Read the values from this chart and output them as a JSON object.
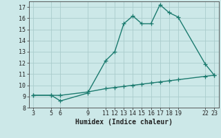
{
  "xlabel": "Humidex (Indice chaleur)",
  "ylabel": "",
  "background_color": "#cce8e8",
  "grid_color": "#aacccc",
  "line_color": "#1a7a6e",
  "ylim": [
    8,
    17.5
  ],
  "xlim": [
    2.5,
    23.5
  ],
  "yticks": [
    8,
    9,
    10,
    11,
    12,
    13,
    14,
    15,
    16,
    17
  ],
  "xticks": [
    3,
    5,
    6,
    9,
    11,
    12,
    13,
    14,
    15,
    16,
    17,
    18,
    19,
    22,
    23
  ],
  "curve1_x": [
    3,
    5,
    6,
    9,
    11,
    12,
    13,
    14,
    15,
    16,
    17,
    18,
    19,
    22,
    23
  ],
  "curve1_y": [
    9.1,
    9.1,
    8.6,
    9.3,
    12.2,
    13.0,
    15.5,
    16.2,
    15.5,
    15.5,
    17.2,
    16.5,
    16.1,
    11.9,
    10.9
  ],
  "curve2_x": [
    3,
    5,
    6,
    9,
    11,
    12,
    13,
    14,
    15,
    16,
    17,
    18,
    19,
    22,
    23
  ],
  "curve2_y": [
    9.1,
    9.1,
    9.1,
    9.4,
    9.7,
    9.8,
    9.9,
    10.0,
    10.1,
    10.2,
    10.3,
    10.4,
    10.5,
    10.8,
    10.9
  ],
  "marker_size": 4,
  "line_width": 1.0,
  "tick_fontsize": 6.0,
  "label_fontsize": 7.0
}
